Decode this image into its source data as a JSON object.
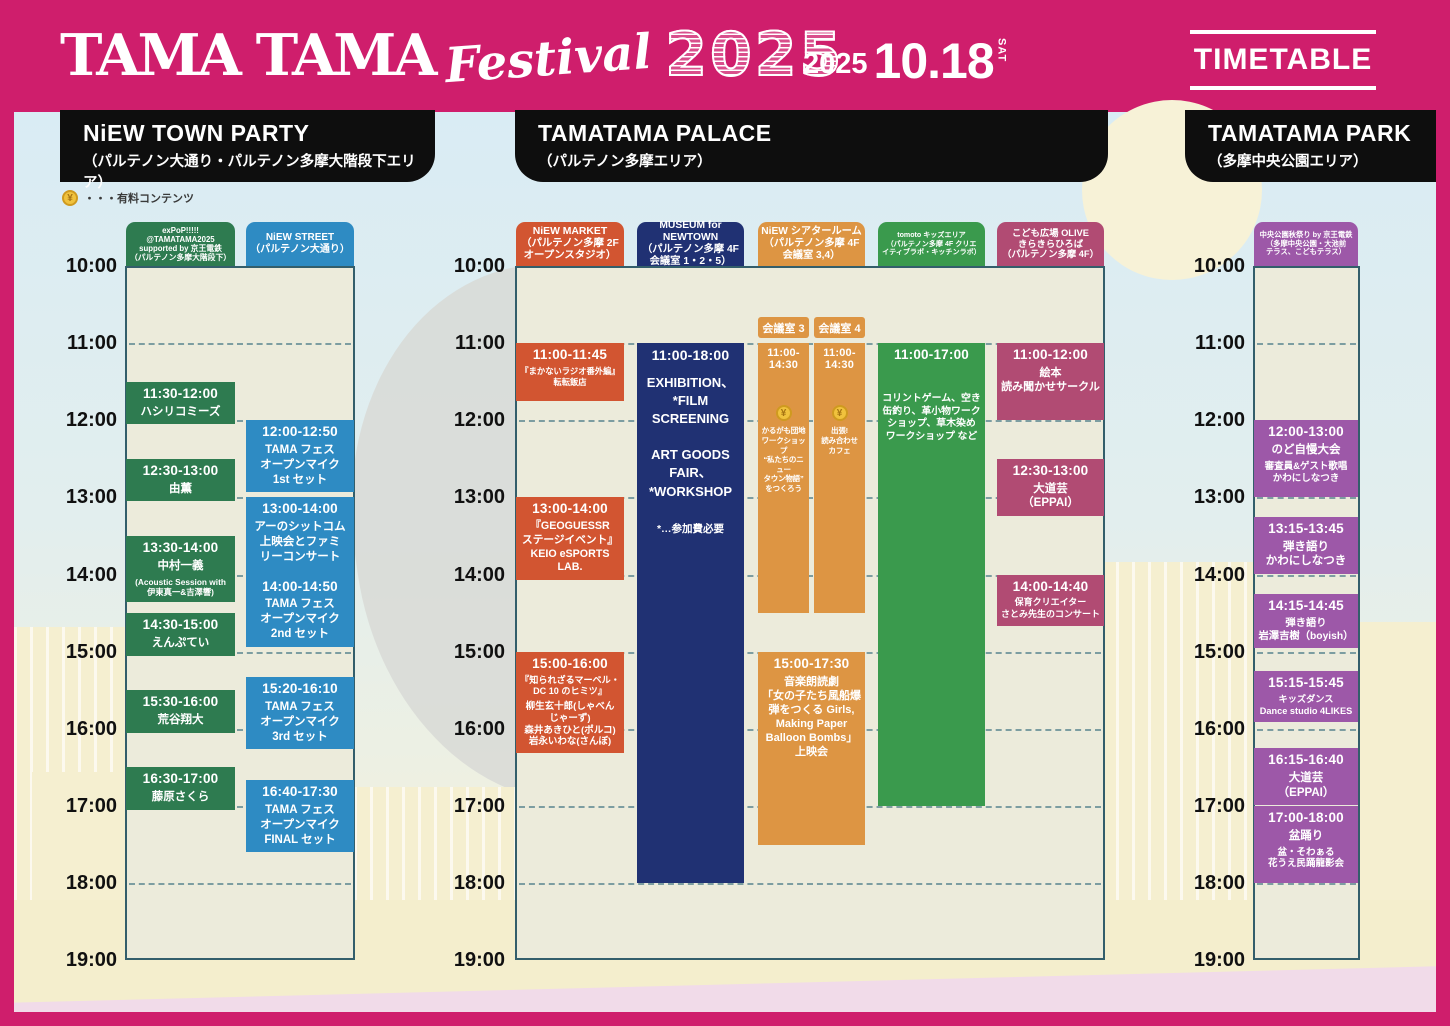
{
  "header": {
    "logo_text": "TAMA TAMA",
    "logo_script": "Festival",
    "logo_year": "2025",
    "date_year": "2025",
    "date_day": "10.18",
    "date_dow": "SAT",
    "timetable_label": "TIMETABLE"
  },
  "legend": {
    "symbol": "¥",
    "text": "・・・有料コンテンツ"
  },
  "time_labels": [
    "10:00",
    "11:00",
    "12:00",
    "13:00",
    "14:00",
    "15:00",
    "16:00",
    "17:00",
    "18:00",
    "19:00"
  ],
  "sections": [
    {
      "title": "NiEW TOWN PARTY",
      "subtitle": "（パルテノン大通り・パルテノン多摩大階段下エリア）"
    },
    {
      "title": "TAMATAMA PALACE",
      "subtitle": "（パルテノン多摩エリア）"
    },
    {
      "title": "TAMATAMA PARK",
      "subtitle": "（多摩中央公園エリア）"
    }
  ],
  "colors": {
    "banner": "#cf1e6c",
    "panel_bg": "#ecebdb",
    "panel_border": "#335e6b"
  },
  "venues": [
    {
      "id": "expop",
      "section": 0,
      "color": "#2e7b50",
      "header": "exPoP!!!!!\n@TAMATAMA2025\nsupported by 京王電鉄\n（パルテノン多摩大階段下）",
      "events": [
        {
          "time": "11:30-12:00",
          "title": "ハシリコミーズ"
        },
        {
          "time": "12:30-13:00",
          "title": "由薫"
        },
        {
          "time": "13:30-14:00",
          "title": "中村一義",
          "note": "(Acoustic Session with\n伊東真一&吉澤響)"
        },
        {
          "time": "14:30-15:00",
          "title": "えんぷてい"
        },
        {
          "time": "15:30-16:00",
          "title": "荒谷翔大"
        },
        {
          "time": "16:30-17:00",
          "title": "藤原さくら"
        }
      ]
    },
    {
      "id": "street",
      "section": 0,
      "color": "#2e8bc3",
      "header": "NiEW STREET\n（パルテノン大通り）",
      "events": [
        {
          "time": "12:00-12:50",
          "title": "TAMA フェス\nオープンマイク\n1st セット"
        },
        {
          "time": "13:00-14:00",
          "title": "アーのシットコム\n上映会とファミ\nリーコンサート"
        },
        {
          "time": "14:00-14:50",
          "title": "TAMA フェス\nオープンマイク\n2nd セット"
        },
        {
          "time": "15:20-16:10",
          "title": "TAMA フェス\nオープンマイク\n3rd セット"
        },
        {
          "time": "16:40-17:30",
          "title": "TAMA フェス\nオープンマイク\nFINAL セット"
        }
      ]
    },
    {
      "id": "market",
      "section": 1,
      "color": "#d25531",
      "header": "NiEW MARKET\n（パルテノン多摩 2F\nオープンスタジオ）",
      "events": [
        {
          "time": "11:00-11:45",
          "title": "『まかないラジオ番外編』\n転転飯店"
        },
        {
          "time": "13:00-14:00",
          "title": "『GEOGUESSR\nステージイベント』\nKEIO eSPORTS LAB."
        },
        {
          "time": "15:00-16:00",
          "title": "『知られざるマーベル・\nDC 10 のヒミツ』",
          "note": "柳生玄十郎(しゃべん\nじゃーず)\n森井あきひと(ポルコ)\n岩永いわな(さんぼ)"
        }
      ]
    },
    {
      "id": "museum",
      "section": 1,
      "color": "#203173",
      "header": "MUSEUM for\nNEWTOWN\n（パルテノン多摩 4F\n会議室 1・2・5）",
      "events": [
        {
          "time": "11:00-18:00",
          "title": "EXHIBITION、\n*FILM\nSCREENING\n\nART GOODS\nFAIR、\n*WORKSHOP",
          "note": "*…参加費必要"
        }
      ]
    },
    {
      "id": "theater",
      "section": 1,
      "color": "#dd9543",
      "header": "NiEW シアタールーム\n（パルテノン多摩 4F\n会議室 3,4）",
      "rooms": [
        "会議室 3",
        "会議室 4"
      ],
      "events": [
        {
          "room": "3",
          "time": "11:00-14:30",
          "paid": true,
          "title": "かるがも団地\nワークショップ\n“私たちのニュー\nタウン物語”\nをつくろう"
        },
        {
          "room": "4",
          "time": "11:00-14:30",
          "paid": true,
          "title": "出張!\n読み合わせ\nカフェ"
        },
        {
          "time": "15:00-17:30",
          "title": "音楽朗読劇\n「女の子たち風船爆\n弾をつくる Girls,\nMaking Paper\nBalloon Bombs」\n上映会"
        }
      ]
    },
    {
      "id": "tomoto",
      "section": 1,
      "color": "#3a9a4d",
      "header": "tomoto キッズエリア\n（パルテノン多摩 4F クリエ\nイティブラボ・キッチンラボ）",
      "events": [
        {
          "time": "11:00-17:00",
          "title": "コリントゲーム、空き\n缶釣り、革小物ワーク\nショップ、草木染め\nワークショップ など"
        }
      ]
    },
    {
      "id": "olive",
      "section": 1,
      "color": "#b14b73",
      "header": "こども広場 OLIVE\nきらきらひろば\n（パルテノン多摩 4F）",
      "events": [
        {
          "time": "11:00-12:00",
          "title": "絵本\n読み聞かせサークル"
        },
        {
          "time": "12:30-13:00",
          "title": "大道芸\n（EPPAI）"
        },
        {
          "time": "14:00-14:40",
          "title": "保育クリエイター\nさとみ先生のコンサート"
        }
      ]
    },
    {
      "id": "park",
      "section": 2,
      "color": "#9d58a8",
      "header": "中央公園秋祭り by 京王電鉄\n（多摩中央公園・大池前\nテラス、こどもテラス）",
      "events": [
        {
          "time": "12:00-13:00",
          "title": "のど自慢大会",
          "note": "審査員&ゲスト歌唱\nかわにしなつき"
        },
        {
          "time": "13:15-13:45",
          "title": "弾き語り\nかわにしなつき"
        },
        {
          "time": "14:15-14:45",
          "title": "弾き語り\n岩澤吉樹（boyish）"
        },
        {
          "time": "15:15-15:45",
          "title": "キッズダンス\nDance studio 4LIKES"
        },
        {
          "time": "16:15-16:40",
          "title": "大道芸\n（EPPAI）"
        },
        {
          "time": "17:00-18:00",
          "title": "盆踊り",
          "note": "盆・そわぁる\n花うえ民踊龍影会"
        }
      ]
    }
  ]
}
